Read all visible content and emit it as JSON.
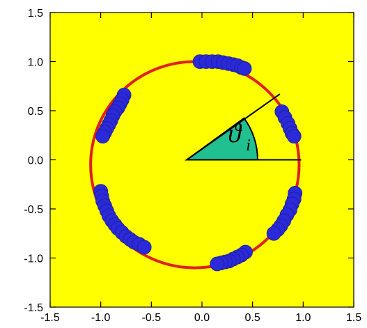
{
  "chart_data": {
    "type": "scatter",
    "title": "",
    "xlabel": "",
    "ylabel": "",
    "xlim": [
      -1.5,
      1.5
    ],
    "ylim": [
      -1.5,
      1.5
    ],
    "x_ticks": [
      "-1.5",
      "-1.0",
      "-0.5",
      "0.0",
      "0.5",
      "1.0",
      "1.5"
    ],
    "x_tick_values": [
      -1.5,
      -1.0,
      -0.5,
      0.0,
      0.5,
      1.0,
      1.5
    ],
    "y_ticks": [
      "1.5",
      "1.0",
      "0.5",
      "0.0",
      "-0.5",
      "-1.0",
      "-1.5"
    ],
    "y_tick_values": [
      1.5,
      1.0,
      0.5,
      0.0,
      -0.5,
      -1.0,
      -1.5
    ],
    "grid": false,
    "legend": "none",
    "colors": {
      "plot_background": "#ffff00",
      "ring": "#e02020",
      "points": "#2a2ad8",
      "angle_wedge": "#20c090",
      "axes": "#000000"
    },
    "ring": {
      "center": [
        -0.07,
        -0.05
      ],
      "radius_x": 1.03,
      "radius_y": 1.05
    },
    "angle_annotation": {
      "vertex": [
        -0.15,
        0.0
      ],
      "ray_end": [
        0.77,
        0.67
      ],
      "baseline_end": [
        0.98,
        0.0
      ],
      "angle_deg": 36,
      "wedge_radius": 0.7,
      "label_base": "ϑ",
      "label_subscript": "i"
    },
    "series": [
      {
        "points": [
          [
            -0.02,
            1.0
          ],
          [
            0.04,
            1.0
          ],
          [
            0.1,
            1.0
          ],
          [
            0.16,
            1.0
          ],
          [
            0.21,
            0.99
          ],
          [
            0.26,
            0.98
          ],
          [
            0.31,
            0.97
          ],
          [
            0.35,
            0.96
          ],
          [
            0.39,
            0.94
          ],
          [
            0.42,
            0.93
          ],
          [
            0.79,
            0.49
          ],
          [
            0.82,
            0.43
          ],
          [
            0.85,
            0.37
          ],
          [
            0.87,
            0.32
          ],
          [
            0.89,
            0.27
          ],
          [
            0.91,
            0.24
          ],
          [
            0.92,
            -0.34
          ],
          [
            0.91,
            -0.4
          ],
          [
            0.89,
            -0.45
          ],
          [
            0.87,
            -0.51
          ],
          [
            0.84,
            -0.56
          ],
          [
            0.81,
            -0.62
          ],
          [
            0.78,
            -0.67
          ],
          [
            0.75,
            -0.71
          ],
          [
            0.71,
            -0.75
          ],
          [
            0.43,
            -0.94
          ],
          [
            0.39,
            -0.97
          ],
          [
            0.35,
            -0.99
          ],
          [
            0.31,
            -1.01
          ],
          [
            0.27,
            -1.03
          ],
          [
            0.23,
            -1.04
          ],
          [
            0.19,
            -1.05
          ],
          [
            0.15,
            -1.06
          ],
          [
            -0.77,
            0.66
          ],
          [
            -0.79,
            0.61
          ],
          [
            -0.81,
            0.57
          ],
          [
            -0.83,
            0.53
          ],
          [
            -0.86,
            0.49
          ],
          [
            -0.88,
            0.45
          ],
          [
            -0.9,
            0.4
          ],
          [
            -0.92,
            0.36
          ],
          [
            -0.94,
            0.32
          ],
          [
            -0.96,
            0.28
          ],
          [
            -0.98,
            0.24
          ],
          [
            -1.0,
            -0.32
          ],
          [
            -0.99,
            -0.37
          ],
          [
            -0.98,
            -0.42
          ],
          [
            -0.96,
            -0.47
          ],
          [
            -0.94,
            -0.52
          ],
          [
            -0.92,
            -0.57
          ],
          [
            -0.89,
            -0.62
          ],
          [
            -0.86,
            -0.66
          ],
          [
            -0.83,
            -0.7
          ],
          [
            -0.79,
            -0.74
          ],
          [
            -0.75,
            -0.78
          ],
          [
            -0.71,
            -0.81
          ],
          [
            -0.67,
            -0.84
          ],
          [
            -0.62,
            -0.86
          ],
          [
            -0.57,
            -0.89
          ]
        ]
      }
    ]
  }
}
